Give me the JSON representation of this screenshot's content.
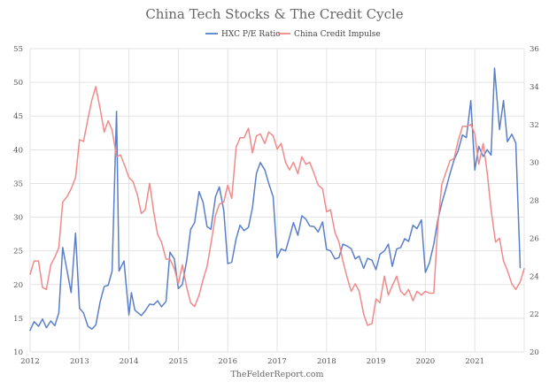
{
  "chart_data": {
    "type": "line",
    "title": "China Tech Stocks & The Credit Cycle",
    "credit": "TheFelderReport.com",
    "legend_position": "top-center",
    "grid": true,
    "x_labels": [
      "2012",
      "2013",
      "2014",
      "2015",
      "2016",
      "2017",
      "2018",
      "2019",
      "2020",
      "2021"
    ],
    "xlim": [
      2012.0,
      2022.0
    ],
    "y_left": {
      "ylim": [
        10,
        55
      ],
      "ticks": [
        "10",
        "15",
        "20",
        "25",
        "30",
        "35",
        "40",
        "45",
        "50",
        "55"
      ]
    },
    "y_right": {
      "ylim": [
        20,
        36
      ],
      "ticks": [
        "20",
        "22",
        "24",
        "26",
        "28",
        "30",
        "32",
        "34",
        "36"
      ]
    },
    "series": [
      {
        "name": "HXC P/E Ratio",
        "axis": "left",
        "color": "#5b7fc7",
        "points": [
          [
            2012.0,
            13.2
          ],
          [
            2012.08,
            14.5
          ],
          [
            2012.17,
            13.8
          ],
          [
            2012.25,
            14.9
          ],
          [
            2012.33,
            13.6
          ],
          [
            2012.42,
            14.6
          ],
          [
            2012.5,
            13.9
          ],
          [
            2012.58,
            15.8
          ],
          [
            2012.66,
            25.5
          ],
          [
            2012.75,
            22.0
          ],
          [
            2012.83,
            18.8
          ],
          [
            2012.92,
            27.6
          ],
          [
            2013.0,
            16.5
          ],
          [
            2013.08,
            15.8
          ],
          [
            2013.17,
            13.8
          ],
          [
            2013.25,
            13.4
          ],
          [
            2013.33,
            14.0
          ],
          [
            2013.42,
            17.5
          ],
          [
            2013.5,
            19.7
          ],
          [
            2013.58,
            19.9
          ],
          [
            2013.66,
            22.0
          ],
          [
            2013.75,
            45.7
          ],
          [
            2013.8,
            22.0
          ],
          [
            2013.9,
            23.5
          ],
          [
            2014.0,
            15.5
          ],
          [
            2014.05,
            18.8
          ],
          [
            2014.12,
            16.2
          ],
          [
            2014.25,
            15.4
          ],
          [
            2014.33,
            16.1
          ],
          [
            2014.42,
            17.1
          ],
          [
            2014.5,
            17.0
          ],
          [
            2014.58,
            17.6
          ],
          [
            2014.66,
            16.7
          ],
          [
            2014.75,
            17.5
          ],
          [
            2014.83,
            24.8
          ],
          [
            2014.92,
            23.8
          ],
          [
            2015.0,
            19.4
          ],
          [
            2015.08,
            20.0
          ],
          [
            2015.17,
            23.6
          ],
          [
            2015.25,
            28.2
          ],
          [
            2015.33,
            29.2
          ],
          [
            2015.42,
            33.8
          ],
          [
            2015.5,
            32.2
          ],
          [
            2015.58,
            28.6
          ],
          [
            2015.66,
            28.2
          ],
          [
            2015.75,
            33.0
          ],
          [
            2015.83,
            34.5
          ],
          [
            2015.92,
            31.0
          ],
          [
            2016.0,
            23.1
          ],
          [
            2016.08,
            23.3
          ],
          [
            2016.17,
            26.8
          ],
          [
            2016.25,
            28.8
          ],
          [
            2016.33,
            28.0
          ],
          [
            2016.42,
            28.5
          ],
          [
            2016.5,
            31.4
          ],
          [
            2016.58,
            36.5
          ],
          [
            2016.66,
            38.1
          ],
          [
            2016.75,
            37.0
          ],
          [
            2016.83,
            35.0
          ],
          [
            2016.92,
            33.0
          ],
          [
            2017.0,
            24.0
          ],
          [
            2017.08,
            25.3
          ],
          [
            2017.17,
            25.0
          ],
          [
            2017.25,
            27.0
          ],
          [
            2017.33,
            29.2
          ],
          [
            2017.42,
            27.3
          ],
          [
            2017.5,
            30.2
          ],
          [
            2017.58,
            29.7
          ],
          [
            2017.66,
            28.7
          ],
          [
            2017.75,
            28.6
          ],
          [
            2017.83,
            27.8
          ],
          [
            2017.92,
            29.3
          ],
          [
            2018.0,
            25.2
          ],
          [
            2018.08,
            25.0
          ],
          [
            2018.17,
            23.8
          ],
          [
            2018.25,
            24.0
          ],
          [
            2018.33,
            26.0
          ],
          [
            2018.42,
            25.7
          ],
          [
            2018.5,
            25.3
          ],
          [
            2018.58,
            23.8
          ],
          [
            2018.66,
            24.2
          ],
          [
            2018.75,
            22.4
          ],
          [
            2018.83,
            23.9
          ],
          [
            2018.92,
            23.6
          ],
          [
            2019.0,
            22.2
          ],
          [
            2019.08,
            24.5
          ],
          [
            2019.17,
            25.0
          ],
          [
            2019.25,
            26.0
          ],
          [
            2019.33,
            22.7
          ],
          [
            2019.42,
            25.3
          ],
          [
            2019.5,
            25.5
          ],
          [
            2019.58,
            26.8
          ],
          [
            2019.66,
            26.4
          ],
          [
            2019.75,
            28.8
          ],
          [
            2019.83,
            28.3
          ],
          [
            2019.92,
            29.6
          ],
          [
            2020.0,
            21.8
          ],
          [
            2020.08,
            23.2
          ],
          [
            2020.17,
            26.0
          ],
          [
            2020.25,
            29.5
          ],
          [
            2020.33,
            32.0
          ],
          [
            2020.42,
            34.3
          ],
          [
            2020.5,
            36.5
          ],
          [
            2020.58,
            38.5
          ],
          [
            2020.66,
            39.8
          ],
          [
            2020.75,
            42.2
          ],
          [
            2020.83,
            41.8
          ],
          [
            2020.92,
            47.3
          ],
          [
            2021.0,
            37.0
          ],
          [
            2021.08,
            40.5
          ],
          [
            2021.17,
            39.0
          ],
          [
            2021.25,
            40.0
          ],
          [
            2021.33,
            39.2
          ],
          [
            2021.4,
            52.1
          ],
          [
            2021.5,
            43.0
          ],
          [
            2021.58,
            47.3
          ],
          [
            2021.66,
            41.2
          ],
          [
            2021.75,
            42.3
          ],
          [
            2021.83,
            41.0
          ],
          [
            2021.92,
            22.5
          ]
        ]
      },
      {
        "name": "China Credit Impulse",
        "axis": "right",
        "color": "#f08a8a",
        "points": [
          [
            2012.0,
            24.1
          ],
          [
            2012.08,
            24.8
          ],
          [
            2012.17,
            24.8
          ],
          [
            2012.25,
            23.4
          ],
          [
            2012.33,
            23.3
          ],
          [
            2012.42,
            24.6
          ],
          [
            2012.5,
            25.0
          ],
          [
            2012.58,
            25.5
          ],
          [
            2012.66,
            27.9
          ],
          [
            2012.75,
            28.2
          ],
          [
            2012.83,
            28.6
          ],
          [
            2012.92,
            29.2
          ],
          [
            2013.0,
            31.2
          ],
          [
            2013.08,
            31.1
          ],
          [
            2013.17,
            32.3
          ],
          [
            2013.25,
            33.3
          ],
          [
            2013.33,
            34.0
          ],
          [
            2013.42,
            32.8
          ],
          [
            2013.5,
            31.6
          ],
          [
            2013.58,
            32.2
          ],
          [
            2013.66,
            31.7
          ],
          [
            2013.75,
            30.3
          ],
          [
            2013.83,
            30.4
          ],
          [
            2013.92,
            29.8
          ],
          [
            2014.0,
            29.2
          ],
          [
            2014.08,
            29.0
          ],
          [
            2014.17,
            28.3
          ],
          [
            2014.25,
            27.3
          ],
          [
            2014.33,
            27.5
          ],
          [
            2014.42,
            28.9
          ],
          [
            2014.5,
            27.4
          ],
          [
            2014.58,
            26.2
          ],
          [
            2014.66,
            25.8
          ],
          [
            2014.75,
            24.9
          ],
          [
            2014.83,
            24.9
          ],
          [
            2014.92,
            24.4
          ],
          [
            2015.0,
            23.6
          ],
          [
            2015.08,
            24.6
          ],
          [
            2015.17,
            23.4
          ],
          [
            2015.25,
            22.6
          ],
          [
            2015.33,
            22.4
          ],
          [
            2015.42,
            23.0
          ],
          [
            2015.5,
            23.8
          ],
          [
            2015.58,
            24.5
          ],
          [
            2015.66,
            25.7
          ],
          [
            2015.75,
            27.2
          ],
          [
            2015.83,
            27.8
          ],
          [
            2015.92,
            27.9
          ],
          [
            2016.0,
            28.8
          ],
          [
            2016.08,
            28.1
          ],
          [
            2016.17,
            30.8
          ],
          [
            2016.25,
            31.3
          ],
          [
            2016.33,
            31.3
          ],
          [
            2016.42,
            31.8
          ],
          [
            2016.5,
            30.5
          ],
          [
            2016.58,
            31.4
          ],
          [
            2016.66,
            31.5
          ],
          [
            2016.75,
            31.0
          ],
          [
            2016.83,
            31.6
          ],
          [
            2016.92,
            31.4
          ],
          [
            2017.0,
            30.7
          ],
          [
            2017.08,
            31.0
          ],
          [
            2017.17,
            30.0
          ],
          [
            2017.25,
            29.6
          ],
          [
            2017.33,
            30.0
          ],
          [
            2017.42,
            29.4
          ],
          [
            2017.5,
            30.3
          ],
          [
            2017.58,
            29.9
          ],
          [
            2017.66,
            30.0
          ],
          [
            2017.75,
            29.4
          ],
          [
            2017.83,
            28.8
          ],
          [
            2017.92,
            28.6
          ],
          [
            2018.0,
            27.4
          ],
          [
            2018.08,
            27.5
          ],
          [
            2018.17,
            26.3
          ],
          [
            2018.25,
            25.8
          ],
          [
            2018.33,
            24.8
          ],
          [
            2018.42,
            23.9
          ],
          [
            2018.5,
            23.2
          ],
          [
            2018.58,
            23.6
          ],
          [
            2018.66,
            23.2
          ],
          [
            2018.75,
            22.0
          ],
          [
            2018.83,
            21.4
          ],
          [
            2018.92,
            21.5
          ],
          [
            2019.0,
            22.8
          ],
          [
            2019.08,
            22.6
          ],
          [
            2019.17,
            24.0
          ],
          [
            2019.25,
            23.0
          ],
          [
            2019.33,
            23.5
          ],
          [
            2019.42,
            24.0
          ],
          [
            2019.5,
            23.2
          ],
          [
            2019.58,
            23.0
          ],
          [
            2019.66,
            23.3
          ],
          [
            2019.75,
            22.7
          ],
          [
            2019.83,
            23.2
          ],
          [
            2019.92,
            23.0
          ],
          [
            2020.0,
            23.2
          ],
          [
            2020.08,
            23.1
          ],
          [
            2020.17,
            23.1
          ],
          [
            2020.25,
            26.6
          ],
          [
            2020.33,
            28.8
          ],
          [
            2020.42,
            29.5
          ],
          [
            2020.5,
            30.1
          ],
          [
            2020.58,
            30.2
          ],
          [
            2020.66,
            31.1
          ],
          [
            2020.75,
            31.9
          ],
          [
            2020.83,
            31.9
          ],
          [
            2020.92,
            32.0
          ],
          [
            2021.0,
            31.5
          ],
          [
            2021.08,
            29.9
          ],
          [
            2021.17,
            31.0
          ],
          [
            2021.25,
            29.5
          ],
          [
            2021.33,
            27.5
          ],
          [
            2021.42,
            25.8
          ],
          [
            2021.5,
            26.0
          ],
          [
            2021.58,
            24.8
          ],
          [
            2021.66,
            24.3
          ],
          [
            2021.75,
            23.6
          ],
          [
            2021.83,
            23.3
          ],
          [
            2021.92,
            23.7
          ],
          [
            2022.0,
            24.4
          ]
        ]
      }
    ]
  }
}
